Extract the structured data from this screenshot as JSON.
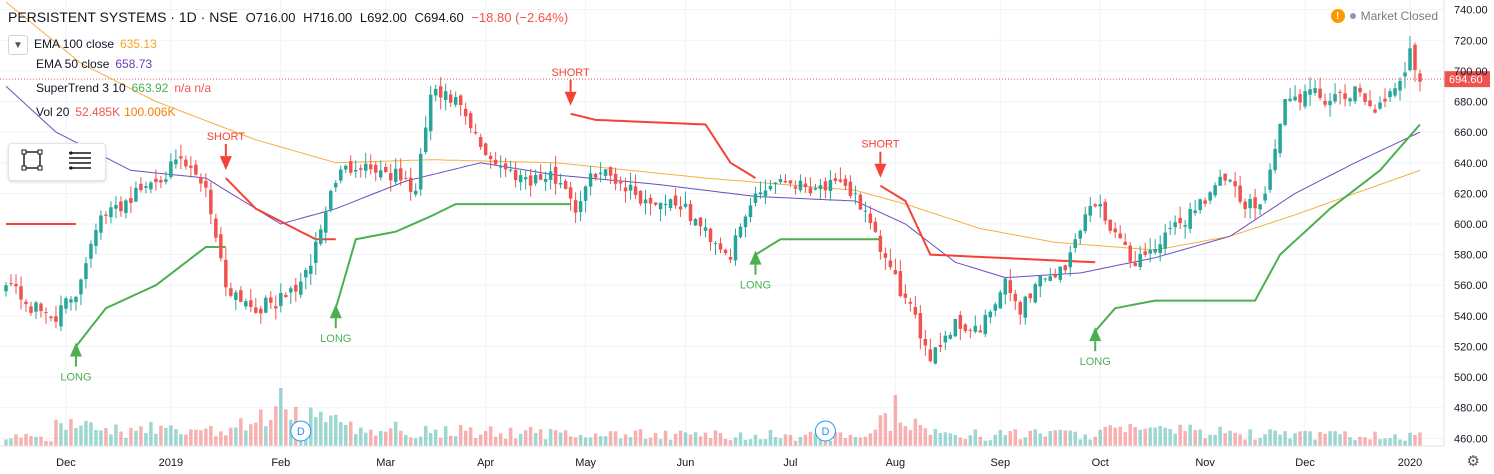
{
  "header": {
    "symbol": "PERSISTENT SYSTEMS · 1D · NSE",
    "open": "O716.00",
    "high": "H716.00",
    "low": "L692.00",
    "close": "C694.60",
    "change": "−18.80 (−2.64%)"
  },
  "indicators": [
    {
      "name": "EMA 100 close",
      "value": "635.13",
      "color": "#f5a623"
    },
    {
      "name": "EMA 50 close",
      "value": "658.73",
      "color": "#673ab7"
    },
    {
      "name": "SuperTrend 3 10",
      "value": "663.92",
      "extra": "n/a n/a",
      "color": "#4caf50",
      "extra_color": "#ef5350"
    },
    {
      "name": "Vol 20",
      "value": "52.485K",
      "extra": "100.006K",
      "color": "#ef5350",
      "extra_color": "#f57c00"
    }
  ],
  "market_status": "Market Closed",
  "colors": {
    "up": "#26a69a",
    "down": "#ef5350",
    "ema100": "#f5b041",
    "ema50": "#6a4fbf",
    "supertrend_up": "#4caf50",
    "supertrend_down": "#f44336",
    "price_line": "#ef5350"
  },
  "icons": {
    "toolbox_rect": "square-select-icon",
    "toolbox_lines": "list-lines-icon",
    "settings": "gear-icon",
    "alert": "warning-icon"
  },
  "chart_data": {
    "type": "candlestick",
    "y_axis": {
      "min": 455,
      "max": 745,
      "ticks": [
        460,
        480,
        500,
        520,
        540,
        560,
        580,
        600,
        620,
        640,
        660,
        680,
        700,
        720,
        740
      ],
      "position": "right"
    },
    "last_price_label": "694.60",
    "x_axis_labels": [
      "Dec",
      "2019",
      "Feb",
      "Mar",
      "Apr",
      "May",
      "Jun",
      "Jul",
      "Aug",
      "Sep",
      "Oct",
      "Nov",
      "Dec",
      "2020"
    ],
    "dividend_markers": [
      "D",
      "D"
    ],
    "signals": [
      {
        "type": "LONG",
        "direction": "up"
      },
      {
        "type": "SHORT",
        "direction": "down"
      },
      {
        "type": "LONG",
        "direction": "up"
      },
      {
        "type": "SHORT",
        "direction": "down"
      },
      {
        "type": "LONG",
        "direction": "up"
      },
      {
        "type": "SHORT",
        "direction": "down"
      },
      {
        "type": "LONG",
        "direction": "up"
      }
    ],
    "price_keypoints": [
      [
        0,
        565
      ],
      [
        5,
        545
      ],
      [
        10,
        540
      ],
      [
        14,
        555
      ],
      [
        18,
        600
      ],
      [
        24,
        615
      ],
      [
        30,
        630
      ],
      [
        35,
        640
      ],
      [
        40,
        625
      ],
      [
        44,
        560
      ],
      [
        50,
        545
      ],
      [
        55,
        550
      ],
      [
        60,
        565
      ],
      [
        66,
        630
      ],
      [
        70,
        640
      ],
      [
        75,
        635
      ],
      [
        79,
        630
      ],
      [
        82,
        620
      ],
      [
        85,
        685
      ],
      [
        90,
        680
      ],
      [
        95,
        650
      ],
      [
        100,
        635
      ],
      [
        105,
        630
      ],
      [
        110,
        630
      ],
      [
        112,
        625
      ],
      [
        114,
        610
      ],
      [
        118,
        635
      ],
      [
        122,
        630
      ],
      [
        128,
        615
      ],
      [
        134,
        615
      ],
      [
        140,
        595
      ],
      [
        145,
        580
      ],
      [
        150,
        620
      ],
      [
        155,
        630
      ],
      [
        160,
        625
      ],
      [
        165,
        625
      ],
      [
        170,
        620
      ],
      [
        174,
        590
      ],
      [
        180,
        550
      ],
      [
        185,
        515
      ],
      [
        190,
        535
      ],
      [
        195,
        530
      ],
      [
        200,
        560
      ],
      [
        203,
        545
      ],
      [
        207,
        565
      ],
      [
        212,
        570
      ],
      [
        215,
        600
      ],
      [
        218,
        615
      ],
      [
        222,
        595
      ],
      [
        225,
        575
      ],
      [
        230,
        585
      ],
      [
        235,
        600
      ],
      [
        239,
        615
      ],
      [
        244,
        630
      ],
      [
        248,
        610
      ],
      [
        252,
        620
      ],
      [
        256,
        680
      ],
      [
        261,
        685
      ],
      [
        266,
        680
      ],
      [
        270,
        685
      ],
      [
        275,
        675
      ],
      [
        279,
        690
      ],
      [
        281,
        715
      ],
      [
        283,
        695
      ]
    ],
    "n_bars": 284,
    "ema50_keypoints": [
      [
        0,
        690
      ],
      [
        10,
        660
      ],
      [
        25,
        635
      ],
      [
        40,
        630
      ],
      [
        55,
        600
      ],
      [
        66,
        610
      ],
      [
        80,
        628
      ],
      [
        95,
        640
      ],
      [
        110,
        632
      ],
      [
        130,
        626
      ],
      [
        150,
        618
      ],
      [
        170,
        615
      ],
      [
        180,
        600
      ],
      [
        190,
        575
      ],
      [
        200,
        565
      ],
      [
        215,
        568
      ],
      [
        230,
        578
      ],
      [
        245,
        592
      ],
      [
        258,
        620
      ],
      [
        270,
        640
      ],
      [
        283,
        660
      ]
    ],
    "ema100_keypoints": [
      [
        0,
        745
      ],
      [
        15,
        705
      ],
      [
        30,
        680
      ],
      [
        50,
        655
      ],
      [
        66,
        640
      ],
      [
        85,
        642
      ],
      [
        110,
        640
      ],
      [
        140,
        630
      ],
      [
        170,
        622
      ],
      [
        180,
        613
      ],
      [
        195,
        597
      ],
      [
        210,
        588
      ],
      [
        230,
        583
      ],
      [
        245,
        592
      ],
      [
        258,
        606
      ],
      [
        270,
        620
      ],
      [
        283,
        635
      ]
    ],
    "volume_keypoints": [
      [
        10,
        0.6
      ],
      [
        20,
        0.55
      ],
      [
        34,
        0.5
      ],
      [
        44,
        0.45
      ],
      [
        55,
        1.0
      ],
      [
        70,
        0.6
      ],
      [
        95,
        0.45
      ],
      [
        110,
        0.4
      ],
      [
        140,
        0.35
      ],
      [
        170,
        0.35
      ],
      [
        178,
        0.85
      ],
      [
        190,
        0.35
      ],
      [
        215,
        0.4
      ],
      [
        225,
        0.55
      ],
      [
        240,
        0.45
      ],
      [
        255,
        0.35
      ],
      [
        270,
        0.35
      ],
      [
        283,
        0.3
      ]
    ]
  }
}
